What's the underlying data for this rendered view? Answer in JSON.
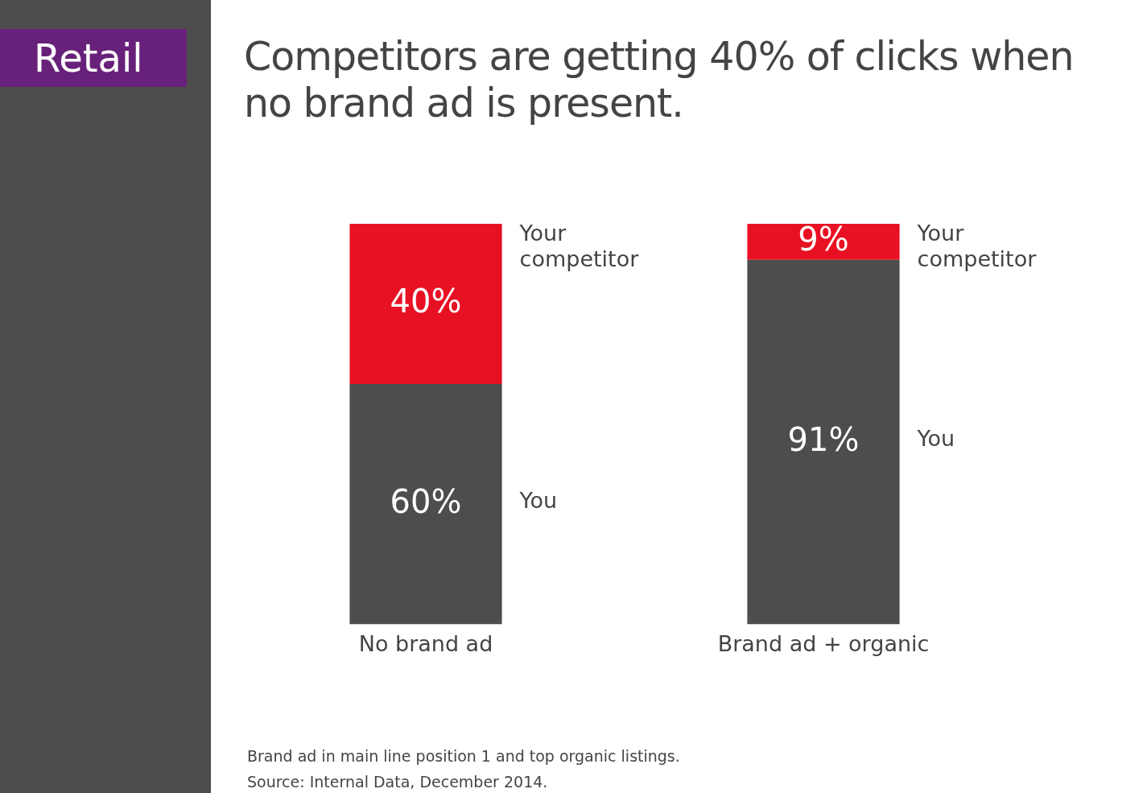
{
  "chart_data": {
    "type": "bar",
    "title": "Competitors are getting 40% of clicks when no brand ad is present.",
    "categories": [
      "No brand ad",
      "Brand ad + organic"
    ],
    "stacked": true,
    "legend": false,
    "grid": false,
    "series": [
      {
        "name": "You",
        "color": "#4d4d4d",
        "values": [
          60,
          91
        ],
        "value_labels": [
          "60%",
          "91%"
        ]
      },
      {
        "name": "Your competitor",
        "color": "#e81123",
        "values": [
          40,
          9
        ],
        "value_labels": [
          "40%",
          "9%"
        ]
      }
    ],
    "annotations": [
      "Retail",
      "Brand ad in main line position 1 and top organic listings.",
      "Source: Internal Data, December 2014."
    ]
  }
}
